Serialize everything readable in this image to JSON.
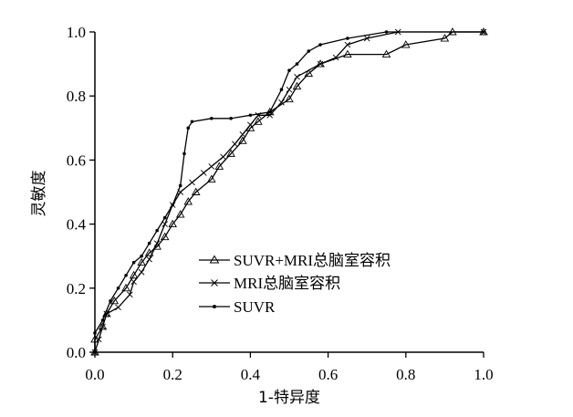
{
  "chart_data": {
    "type": "line",
    "xlabel": "1-特异度",
    "ylabel": "灵敏度",
    "xlim": [
      0,
      1
    ],
    "ylim": [
      0,
      1
    ],
    "x_ticks": [
      "0.0",
      "0.2",
      "0.4",
      "0.6",
      "0.8",
      "1.0"
    ],
    "y_ticks": [
      "0.0",
      "0.2",
      "0.4",
      "0.6",
      "0.8",
      "1.0"
    ],
    "grid": false,
    "legend_position": "center",
    "series": [
      {
        "name": "SUVR+MRI总脑室容积",
        "marker": "triangle",
        "points": [
          [
            0.0,
            0.0
          ],
          [
            0.0,
            0.04
          ],
          [
            0.02,
            0.08
          ],
          [
            0.03,
            0.12
          ],
          [
            0.05,
            0.16
          ],
          [
            0.08,
            0.2
          ],
          [
            0.1,
            0.24
          ],
          [
            0.12,
            0.28
          ],
          [
            0.14,
            0.31
          ],
          [
            0.16,
            0.33
          ],
          [
            0.18,
            0.36
          ],
          [
            0.2,
            0.4
          ],
          [
            0.22,
            0.43
          ],
          [
            0.24,
            0.47
          ],
          [
            0.26,
            0.5
          ],
          [
            0.3,
            0.54
          ],
          [
            0.32,
            0.58
          ],
          [
            0.35,
            0.62
          ],
          [
            0.38,
            0.66
          ],
          [
            0.4,
            0.7
          ],
          [
            0.42,
            0.72
          ],
          [
            0.45,
            0.75
          ],
          [
            0.5,
            0.79
          ],
          [
            0.52,
            0.83
          ],
          [
            0.55,
            0.87
          ],
          [
            0.58,
            0.9
          ],
          [
            0.65,
            0.93
          ],
          [
            0.75,
            0.93
          ],
          [
            0.8,
            0.96
          ],
          [
            0.9,
            0.98
          ],
          [
            0.92,
            1.0
          ],
          [
            1.0,
            1.0
          ]
        ]
      },
      {
        "name": "MRI总脑室容积",
        "marker": "x",
        "points": [
          [
            0.0,
            0.0
          ],
          [
            0.01,
            0.04
          ],
          [
            0.02,
            0.08
          ],
          [
            0.03,
            0.12
          ],
          [
            0.06,
            0.14
          ],
          [
            0.09,
            0.18
          ],
          [
            0.1,
            0.22
          ],
          [
            0.12,
            0.25
          ],
          [
            0.14,
            0.29
          ],
          [
            0.16,
            0.34
          ],
          [
            0.18,
            0.4
          ],
          [
            0.2,
            0.46
          ],
          [
            0.22,
            0.5
          ],
          [
            0.25,
            0.53
          ],
          [
            0.28,
            0.56
          ],
          [
            0.3,
            0.58
          ],
          [
            0.33,
            0.61
          ],
          [
            0.36,
            0.65
          ],
          [
            0.38,
            0.68
          ],
          [
            0.4,
            0.71
          ],
          [
            0.42,
            0.74
          ],
          [
            0.45,
            0.74
          ],
          [
            0.48,
            0.78
          ],
          [
            0.5,
            0.82
          ],
          [
            0.52,
            0.86
          ],
          [
            0.58,
            0.9
          ],
          [
            0.62,
            0.92
          ],
          [
            0.65,
            0.96
          ],
          [
            0.7,
            0.98
          ],
          [
            0.78,
            1.0
          ],
          [
            1.0,
            1.0
          ]
        ]
      },
      {
        "name": "SUVR",
        "marker": "dot",
        "points": [
          [
            0.0,
            0.0
          ],
          [
            0.0,
            0.06
          ],
          [
            0.02,
            0.1
          ],
          [
            0.04,
            0.16
          ],
          [
            0.06,
            0.2
          ],
          [
            0.08,
            0.24
          ],
          [
            0.1,
            0.28
          ],
          [
            0.12,
            0.3
          ],
          [
            0.14,
            0.34
          ],
          [
            0.16,
            0.38
          ],
          [
            0.18,
            0.42
          ],
          [
            0.2,
            0.46
          ],
          [
            0.22,
            0.52
          ],
          [
            0.23,
            0.62
          ],
          [
            0.24,
            0.7
          ],
          [
            0.25,
            0.72
          ],
          [
            0.3,
            0.73
          ],
          [
            0.35,
            0.73
          ],
          [
            0.4,
            0.74
          ],
          [
            0.45,
            0.75
          ],
          [
            0.48,
            0.82
          ],
          [
            0.5,
            0.88
          ],
          [
            0.52,
            0.9
          ],
          [
            0.55,
            0.94
          ],
          [
            0.58,
            0.96
          ],
          [
            0.65,
            0.98
          ],
          [
            0.75,
            1.0
          ],
          [
            1.0,
            1.0
          ]
        ]
      }
    ]
  }
}
